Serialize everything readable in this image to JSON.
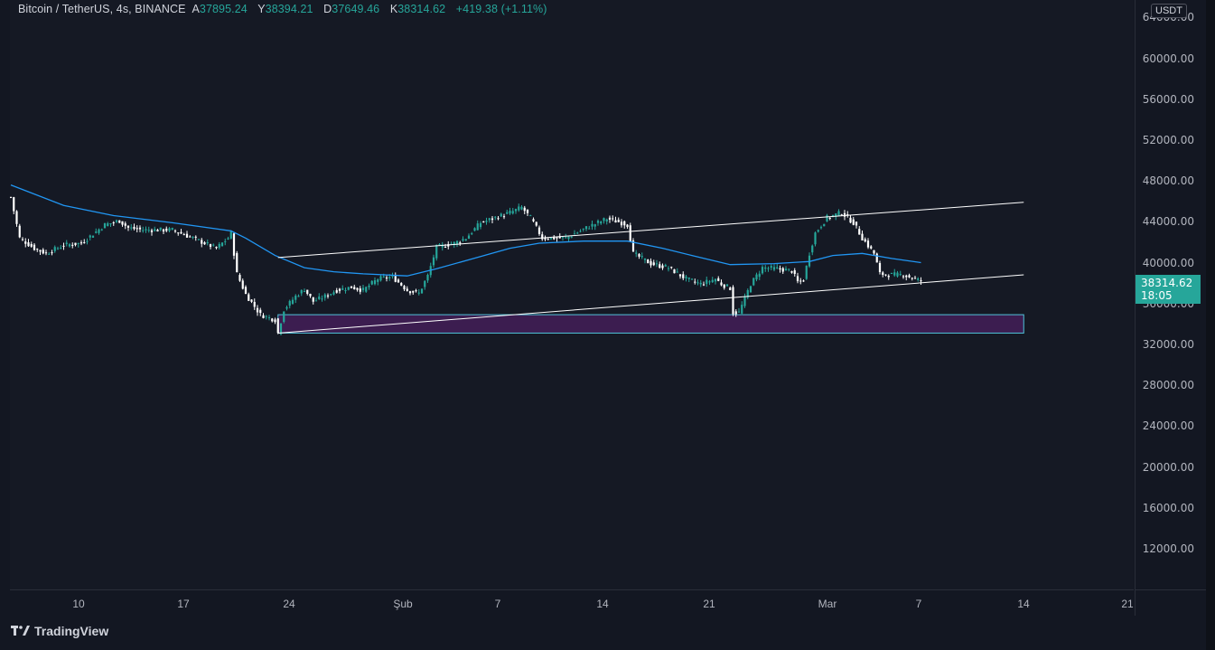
{
  "header": {
    "symbol": "Bitcoin / TetherUS, 4s, BINANCE",
    "open_key": "A",
    "open_val": "37895.24",
    "high_key": "Y",
    "high_val": "38394.21",
    "low_key": "D",
    "low_val": "37649.46",
    "close_key": "K",
    "close_val": "38314.62",
    "change": "+419.38 (+1.11%)"
  },
  "currency": "USDT",
  "last_price": "38314.62",
  "countdown": "18:05",
  "brand": "TradingView",
  "colors": {
    "up": "#26a69a",
    "down": "#ffffff",
    "ma": "#2196f3",
    "zone_fill": "#4a1f5f",
    "zone_border": "#4fc3d9",
    "trendline": "#ffffff"
  },
  "chart_data": {
    "type": "candlestick",
    "ylim": [
      8000,
      66000
    ],
    "y_ticks": [
      "64000.00",
      "60000.00",
      "56000.00",
      "52000.00",
      "48000.00",
      "44000.00",
      "40000.00",
      "36000.00",
      "32000.00",
      "28000.00",
      "24000.00",
      "20000.00",
      "16000.00",
      "12000.00"
    ],
    "x_ticks": [
      "10",
      "17",
      "24",
      "Şub",
      "7",
      "14",
      "21",
      "Mar",
      "7",
      "14",
      "21"
    ],
    "price_path": [
      [
        0,
        46500
      ],
      [
        3,
        42500
      ],
      [
        8,
        41500
      ],
      [
        12,
        41000
      ],
      [
        18,
        41800
      ],
      [
        24,
        42000
      ],
      [
        32,
        43800
      ],
      [
        37,
        44200
      ],
      [
        40,
        43500
      ],
      [
        45,
        43300
      ],
      [
        55,
        43300
      ],
      [
        62,
        42500
      ],
      [
        70,
        41500
      ],
      [
        74,
        42500
      ],
      [
        75,
        43000
      ],
      [
        77,
        39000
      ],
      [
        80,
        37000
      ],
      [
        85,
        35000
      ],
      [
        90,
        34500
      ],
      [
        91,
        33200
      ],
      [
        93,
        35500
      ],
      [
        97,
        36800
      ],
      [
        100,
        37500
      ],
      [
        103,
        36300
      ],
      [
        107,
        36800
      ],
      [
        111,
        37400
      ],
      [
        116,
        37700
      ],
      [
        120,
        37400
      ],
      [
        125,
        38500
      ],
      [
        130,
        38700
      ],
      [
        135,
        37400
      ],
      [
        139,
        37100
      ],
      [
        142,
        38800
      ],
      [
        145,
        41600
      ],
      [
        151,
        42000
      ],
      [
        155,
        42500
      ],
      [
        160,
        44000
      ],
      [
        165,
        44500
      ],
      [
        170,
        45000
      ],
      [
        174,
        45500
      ],
      [
        177,
        44500
      ],
      [
        181,
        42500
      ],
      [
        189,
        42500
      ],
      [
        196,
        43500
      ],
      [
        203,
        44400
      ],
      [
        208,
        44000
      ],
      [
        210,
        43800
      ],
      [
        212,
        41000
      ],
      [
        218,
        40000
      ],
      [
        224,
        39600
      ],
      [
        230,
        38500
      ],
      [
        235,
        38000
      ],
      [
        240,
        38500
      ],
      [
        242,
        38000
      ],
      [
        245,
        37600
      ],
      [
        246,
        35200
      ],
      [
        248,
        35200
      ],
      [
        252,
        38000
      ],
      [
        256,
        39600
      ],
      [
        261,
        39500
      ],
      [
        266,
        39300
      ],
      [
        268,
        38200
      ],
      [
        270,
        38400
      ],
      [
        272,
        41000
      ],
      [
        274,
        43000
      ],
      [
        278,
        44500
      ],
      [
        283,
        45000
      ],
      [
        287,
        44000
      ],
      [
        290,
        42500
      ],
      [
        294,
        41000
      ],
      [
        296,
        39000
      ],
      [
        300,
        38900
      ],
      [
        304,
        38900
      ],
      [
        308,
        38500
      ],
      [
        310,
        38300
      ]
    ],
    "moving_average": [
      [
        0,
        47700
      ],
      [
        18,
        45700
      ],
      [
        35,
        44700
      ],
      [
        55,
        44000
      ],
      [
        75,
        43200
      ],
      [
        80,
        42500
      ],
      [
        90,
        40800
      ],
      [
        100,
        39600
      ],
      [
        110,
        39200
      ],
      [
        120,
        39000
      ],
      [
        135,
        38800
      ],
      [
        145,
        39500
      ],
      [
        160,
        40700
      ],
      [
        170,
        41500
      ],
      [
        180,
        42000
      ],
      [
        195,
        42200
      ],
      [
        210,
        42200
      ],
      [
        222,
        41500
      ],
      [
        232,
        40800
      ],
      [
        245,
        39900
      ],
      [
        260,
        40000
      ],
      [
        272,
        40200
      ],
      [
        280,
        40800
      ],
      [
        290,
        41000
      ],
      [
        300,
        40500
      ],
      [
        310,
        40100
      ]
    ],
    "trendlines": [
      {
        "from": [
          91,
          40600
        ],
        "to": [
          345,
          46000
        ]
      },
      {
        "from": [
          91,
          33200
        ],
        "to": [
          345,
          38900
        ]
      }
    ],
    "zone": {
      "x_from": 91,
      "x_to": 345,
      "y_low": 33200,
      "y_high": 35000
    }
  }
}
